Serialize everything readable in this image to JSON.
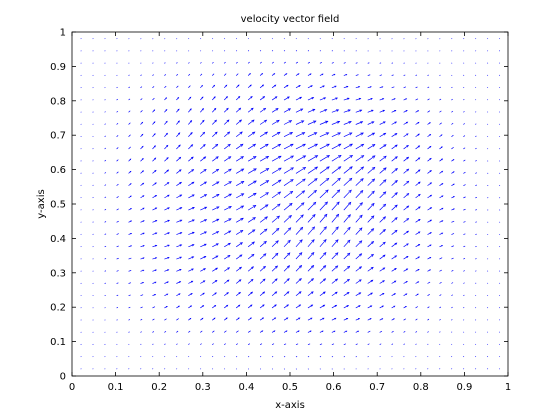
{
  "chart_data": {
    "type": "quiver",
    "title": "velocity vector field",
    "xlabel": "x-axis",
    "ylabel": "y-axis",
    "xlim": [
      0,
      1
    ],
    "ylim": [
      0,
      1
    ],
    "xticks": [
      "0",
      "0.1",
      "0.2",
      "0.3",
      "0.4",
      "0.5",
      "0.6",
      "0.7",
      "0.8",
      "0.9",
      "1"
    ],
    "yticks": [
      "0",
      "0.1",
      "0.2",
      "0.3",
      "0.4",
      "0.5",
      "0.6",
      "0.7",
      "0.8",
      "0.9",
      "1"
    ],
    "grid": false,
    "box": true,
    "vector_color": "#0000ff",
    "axis_color": "#000000",
    "background": "#ffffff",
    "field": {
      "grid_resolution": [
        36,
        28
      ],
      "x_range": [
        0.02,
        0.98
      ],
      "y_range": [
        0.02,
        0.98
      ],
      "dominant_direction": "up-right",
      "max_magnitude_near": [
        0.5,
        0.5
      ],
      "magnitude_falloff_to_edges": true
    }
  }
}
